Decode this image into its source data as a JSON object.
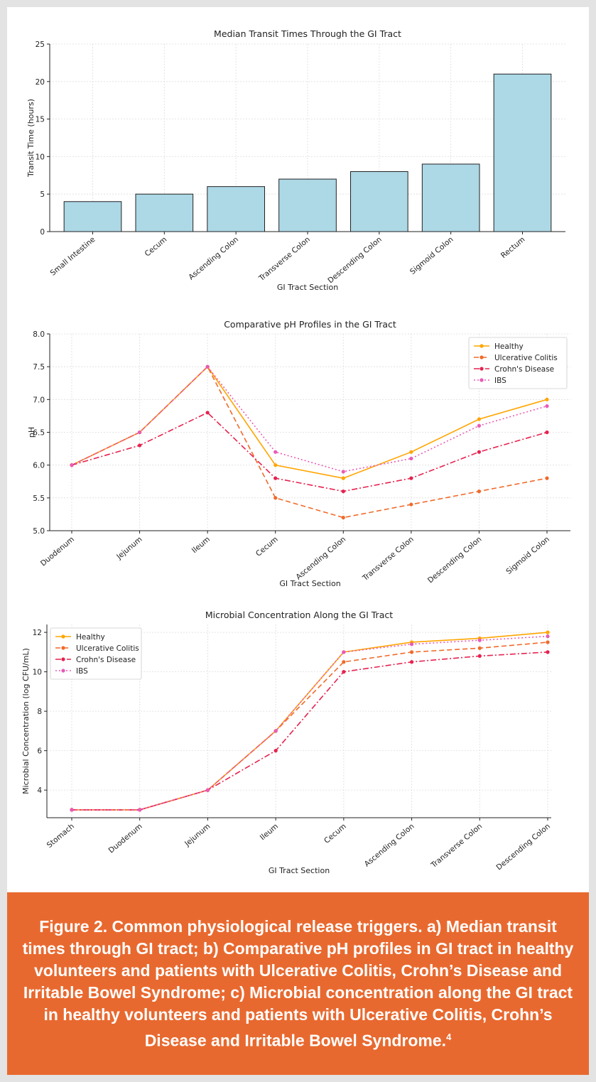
{
  "chart_data": [
    {
      "type": "bar",
      "title": "Median Transit Times Through the GI Tract",
      "xlabel": "GI Tract Section",
      "ylabel": "Transit Time (hours)",
      "categories": [
        "Small Intestine",
        "Cecum",
        "Ascending Colon",
        "Transverse Colon",
        "Descending Colon",
        "Sigmoid Colon",
        "Rectum"
      ],
      "values": [
        4,
        5,
        6,
        7,
        8,
        9,
        21
      ],
      "ylim": [
        0,
        25
      ],
      "yticks": [
        "0",
        "5",
        "10",
        "15",
        "20",
        "25"
      ],
      "grid": true,
      "bar_color": "#add8e6"
    },
    {
      "type": "line",
      "title": "Comparative pH Profiles in the GI Tract",
      "xlabel": "GI Tract Section",
      "ylabel": "pH",
      "categories": [
        "Duodenum",
        "Jejunum",
        "Ileum",
        "Cecum",
        "Ascending Colon",
        "Transverse Colon",
        "Descending Colon",
        "Sigmoid Colon"
      ],
      "ylim": [
        5.0,
        8.0
      ],
      "yticks": [
        "5.0",
        "5.5",
        "6.0",
        "6.5",
        "7.0",
        "7.5",
        "8.0"
      ],
      "legend_position": "top-right",
      "grid": true,
      "series": [
        {
          "name": "Healthy",
          "values": [
            6.0,
            6.5,
            7.5,
            6.0,
            5.8,
            6.2,
            6.7,
            7.0
          ],
          "color": "#ffa500",
          "dash": "solid"
        },
        {
          "name": "Ulcerative Colitis",
          "values": [
            6.0,
            6.5,
            7.5,
            5.5,
            5.2,
            5.4,
            5.6,
            5.8
          ],
          "color": "#f06a2a",
          "dash": "dashed"
        },
        {
          "name": "Crohn's Disease",
          "values": [
            6.0,
            6.3,
            6.8,
            5.8,
            5.6,
            5.8,
            6.2,
            6.5
          ],
          "color": "#e6224f",
          "dash": "dashdot"
        },
        {
          "name": "IBS",
          "values": [
            6.0,
            6.5,
            7.5,
            6.2,
            5.9,
            6.1,
            6.6,
            6.9
          ],
          "color": "#e85bb5",
          "dash": "dotted"
        }
      ]
    },
    {
      "type": "line",
      "title": "Microbial Concentration Along the GI Tract",
      "xlabel": "GI Tract Section",
      "ylabel": "Microbial Concentration (log CFU/mL)",
      "categories": [
        "Stomach",
        "Duodenum",
        "Jejunum",
        "Ileum",
        "Cecum",
        "Ascending Colon",
        "Transverse Colon",
        "Descending Colon"
      ],
      "ylim": [
        2.6,
        12.4
      ],
      "yticks": [
        "4",
        "6",
        "8",
        "10",
        "12"
      ],
      "legend_position": "top-left",
      "grid": true,
      "series": [
        {
          "name": "Healthy",
          "values": [
            3,
            3,
            4,
            7,
            11,
            11.5,
            11.7,
            12
          ],
          "color": "#ffa500",
          "dash": "solid"
        },
        {
          "name": "Ulcerative Colitis",
          "values": [
            3,
            3,
            4,
            7,
            10.5,
            11,
            11.2,
            11.5
          ],
          "color": "#f06a2a",
          "dash": "dashed"
        },
        {
          "name": "Crohn's Disease",
          "values": [
            3,
            3,
            4,
            6,
            10,
            10.5,
            10.8,
            11
          ],
          "color": "#e6224f",
          "dash": "dashdot"
        },
        {
          "name": "IBS",
          "values": [
            3,
            3,
            4,
            7,
            11,
            11.4,
            11.6,
            11.8
          ],
          "color": "#e85bb5",
          "dash": "dotted"
        }
      ]
    }
  ],
  "caption": {
    "text": "Figure 2. Common physiological release triggers. a) Median transit times through GI tract; b) Comparative pH profiles in GI tract in healthy volunteers and patients with Ulcerative Colitis, Crohn’s Disease and Irritable Bowel Syndrome; c) Microbial concentration along the GI tract in healthy volunteers and patients with Ulcerative Colitis, Crohn’s Disease and Irritable Bowel Syndrome.",
    "reference": "4"
  }
}
